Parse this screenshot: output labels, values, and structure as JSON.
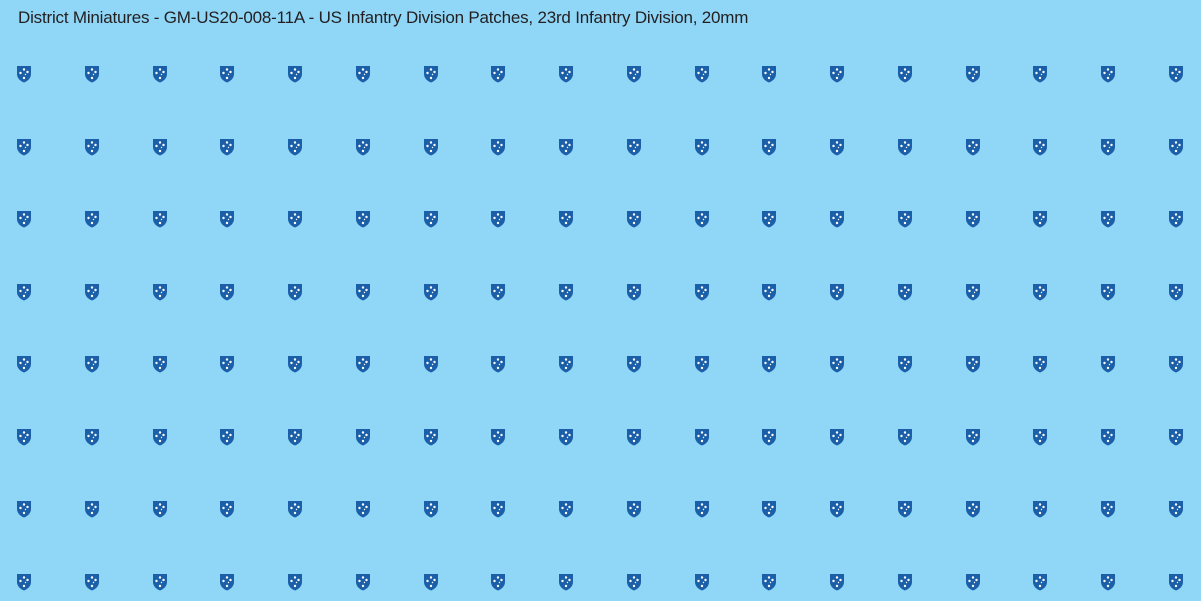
{
  "title": "District Miniatures - GM-US20-008-11A - US Infantry Division Patches, 23rd Infantry Division, 20mm",
  "patches": {
    "rows": 8,
    "columns": 18,
    "icon": "23rd-infantry-division-shield-icon",
    "shield_color": "#1a5fa8",
    "star_color": "#ffffff"
  },
  "background_color": "#8fd6f7"
}
